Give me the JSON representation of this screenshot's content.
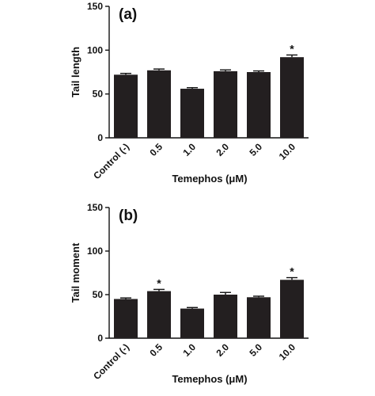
{
  "chart_data": [
    {
      "type": "bar",
      "panel": "(a)",
      "ylabel": "Tail length",
      "xlabel": "Temephos (μM)",
      "categories": [
        "Control (-)",
        "0.5",
        "1.0",
        "2.0",
        "5.0",
        "10.0"
      ],
      "values": [
        72,
        77,
        56,
        76,
        75,
        92
      ],
      "errors": [
        1.5,
        1.5,
        1.2,
        1.5,
        1.3,
        2.5
      ],
      "annotations": [
        {
          "text": "*",
          "category": "10.0"
        }
      ],
      "color": "#231f20",
      "ylim": [
        0,
        150
      ],
      "yticks": [
        0,
        50,
        100,
        150
      ]
    },
    {
      "type": "bar",
      "panel": "(b)",
      "ylabel": "Tail moment",
      "xlabel": "Temephos (μM)",
      "categories": [
        "Control (-)",
        "0.5",
        "1.0",
        "2.0",
        "5.0",
        "10.0"
      ],
      "values": [
        45,
        54,
        34,
        50,
        47,
        67
      ],
      "errors": [
        1.2,
        2,
        1.2,
        2.5,
        1.2,
        2.5
      ],
      "annotations": [
        {
          "text": "*",
          "category": "0.5"
        },
        {
          "text": "*",
          "category": "10.0"
        }
      ],
      "color": "#231f20",
      "ylim": [
        0,
        150
      ],
      "yticks": [
        0,
        50,
        100,
        150
      ]
    }
  ]
}
